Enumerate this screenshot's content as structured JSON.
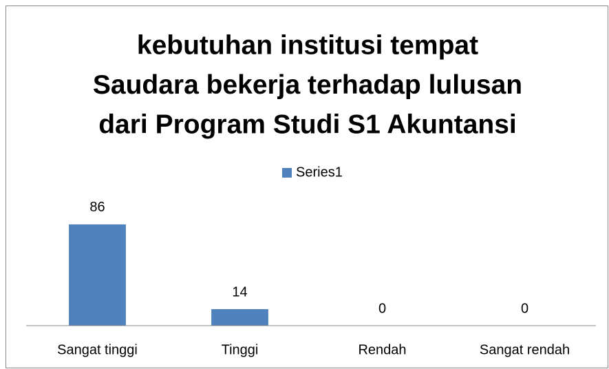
{
  "chart_data": {
    "type": "bar",
    "title": [
      "kebutuhan institusi tempat",
      "Saudara bekerja terhadap lulusan",
      "dari  Program Studi S1 Akuntansi"
    ],
    "categories": [
      "Sangat tinggi",
      "Tinggi",
      "Rendah",
      "Sangat rendah"
    ],
    "series": [
      {
        "name": "Series1",
        "color": "#4f81bd",
        "values": [
          86,
          14,
          0,
          0
        ]
      }
    ],
    "ylim": [
      0,
      100
    ],
    "legend": "top"
  }
}
